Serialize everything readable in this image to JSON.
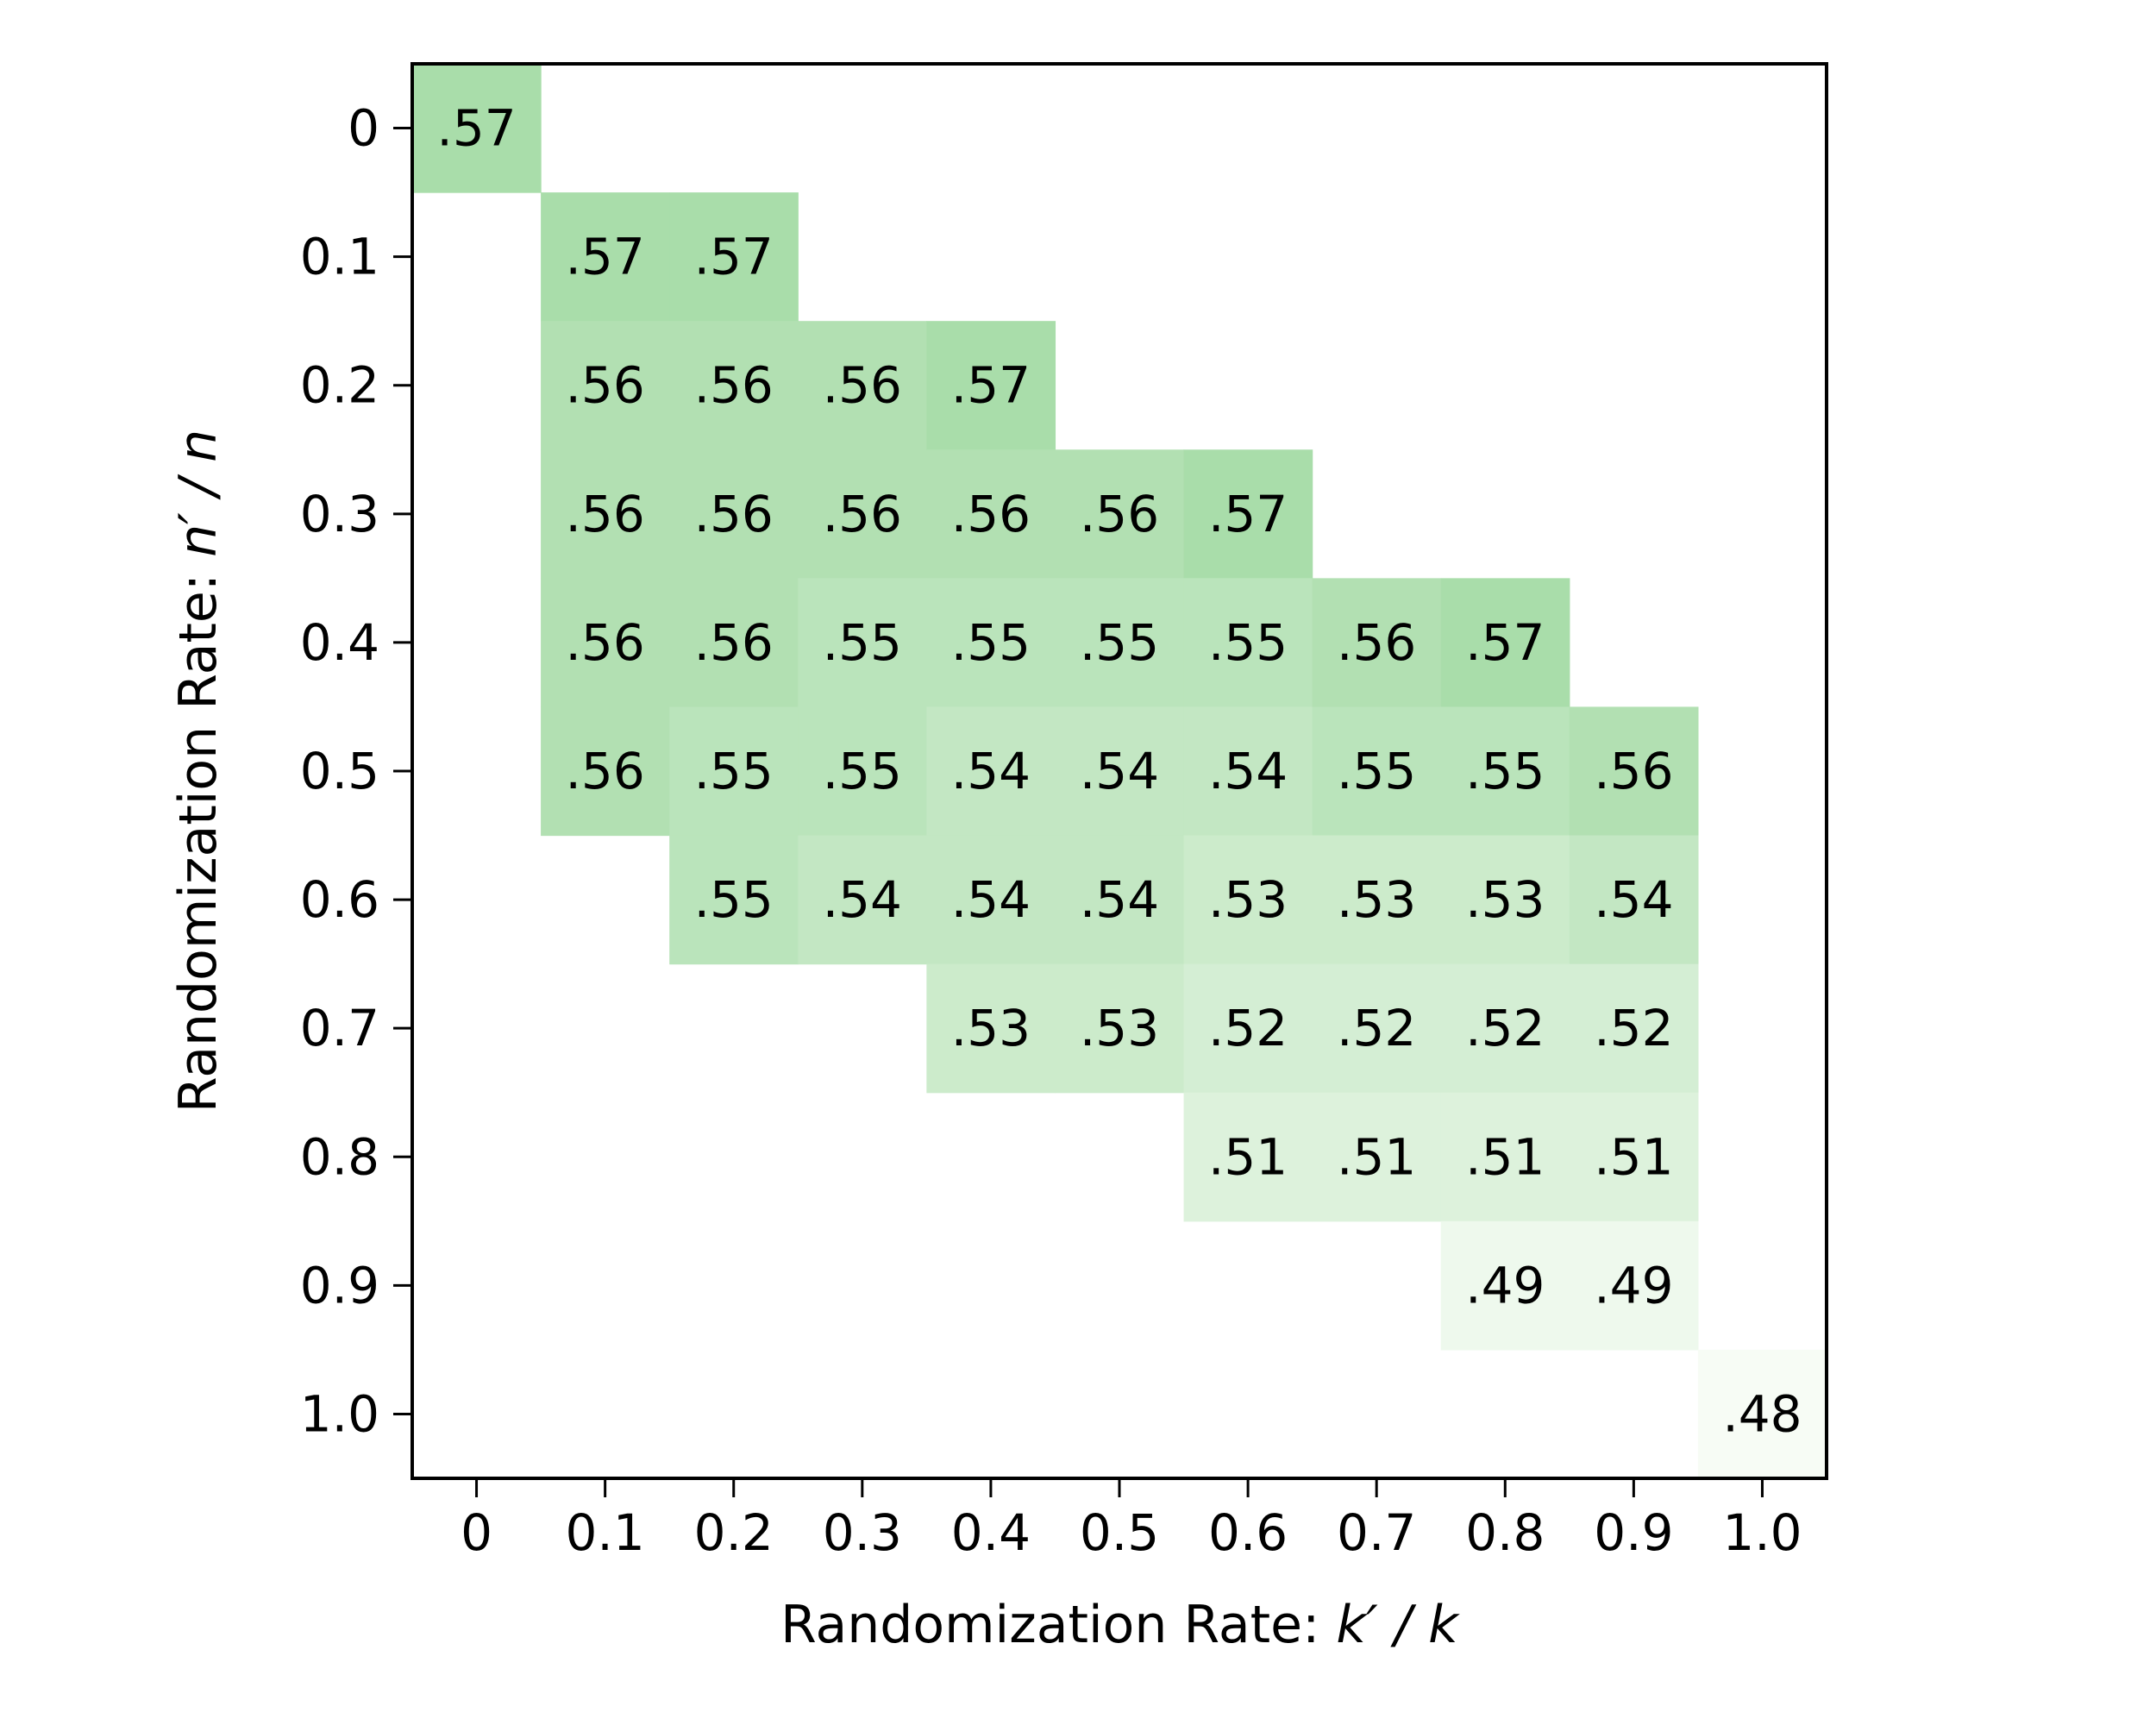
{
  "chart_data": {
    "type": "heatmap",
    "title": "",
    "xlabel": {
      "prefix": "Randomization Rate: ",
      "math": "k′ / k"
    },
    "ylabel": {
      "prefix": "Randomization Rate: ",
      "math": "n′ / n"
    },
    "x_ticks": [
      "0",
      "0.1",
      "0.2",
      "0.3",
      "0.4",
      "0.5",
      "0.6",
      "0.7",
      "0.8",
      "0.9",
      "1.0"
    ],
    "y_ticks": [
      "0",
      "0.1",
      "0.2",
      "0.3",
      "0.4",
      "0.5",
      "0.6",
      "0.7",
      "0.8",
      "0.9",
      "1.0"
    ],
    "color_range": [
      0.48,
      0.57
    ],
    "colors": {
      "low": "#f7fcf5",
      "high": "#a9ddaa"
    },
    "grid": false,
    "cells": [
      {
        "x": "0",
        "y": "0",
        "value": 0.57,
        "label": ".57"
      },
      {
        "x": "0.1",
        "y": "0.1",
        "value": 0.57,
        "label": ".57"
      },
      {
        "x": "0.2",
        "y": "0.1",
        "value": 0.57,
        "label": ".57"
      },
      {
        "x": "0.1",
        "y": "0.2",
        "value": 0.56,
        "label": ".56"
      },
      {
        "x": "0.2",
        "y": "0.2",
        "value": 0.56,
        "label": ".56"
      },
      {
        "x": "0.3",
        "y": "0.2",
        "value": 0.56,
        "label": ".56"
      },
      {
        "x": "0.4",
        "y": "0.2",
        "value": 0.57,
        "label": ".57"
      },
      {
        "x": "0.1",
        "y": "0.3",
        "value": 0.56,
        "label": ".56"
      },
      {
        "x": "0.2",
        "y": "0.3",
        "value": 0.56,
        "label": ".56"
      },
      {
        "x": "0.3",
        "y": "0.3",
        "value": 0.56,
        "label": ".56"
      },
      {
        "x": "0.4",
        "y": "0.3",
        "value": 0.56,
        "label": ".56"
      },
      {
        "x": "0.5",
        "y": "0.3",
        "value": 0.56,
        "label": ".56"
      },
      {
        "x": "0.6",
        "y": "0.3",
        "value": 0.57,
        "label": ".57"
      },
      {
        "x": "0.1",
        "y": "0.4",
        "value": 0.56,
        "label": ".56"
      },
      {
        "x": "0.2",
        "y": "0.4",
        "value": 0.56,
        "label": ".56"
      },
      {
        "x": "0.3",
        "y": "0.4",
        "value": 0.55,
        "label": ".55"
      },
      {
        "x": "0.4",
        "y": "0.4",
        "value": 0.55,
        "label": ".55"
      },
      {
        "x": "0.5",
        "y": "0.4",
        "value": 0.55,
        "label": ".55"
      },
      {
        "x": "0.6",
        "y": "0.4",
        "value": 0.55,
        "label": ".55"
      },
      {
        "x": "0.7",
        "y": "0.4",
        "value": 0.56,
        "label": ".56"
      },
      {
        "x": "0.8",
        "y": "0.4",
        "value": 0.57,
        "label": ".57"
      },
      {
        "x": "0.1",
        "y": "0.5",
        "value": 0.56,
        "label": ".56"
      },
      {
        "x": "0.2",
        "y": "0.5",
        "value": 0.55,
        "label": ".55"
      },
      {
        "x": "0.3",
        "y": "0.5",
        "value": 0.55,
        "label": ".55"
      },
      {
        "x": "0.4",
        "y": "0.5",
        "value": 0.54,
        "label": ".54"
      },
      {
        "x": "0.5",
        "y": "0.5",
        "value": 0.54,
        "label": ".54"
      },
      {
        "x": "0.6",
        "y": "0.5",
        "value": 0.54,
        "label": ".54"
      },
      {
        "x": "0.7",
        "y": "0.5",
        "value": 0.55,
        "label": ".55"
      },
      {
        "x": "0.8",
        "y": "0.5",
        "value": 0.55,
        "label": ".55"
      },
      {
        "x": "0.9",
        "y": "0.5",
        "value": 0.56,
        "label": ".56"
      },
      {
        "x": "0.2",
        "y": "0.6",
        "value": 0.55,
        "label": ".55"
      },
      {
        "x": "0.3",
        "y": "0.6",
        "value": 0.54,
        "label": ".54"
      },
      {
        "x": "0.4",
        "y": "0.6",
        "value": 0.54,
        "label": ".54"
      },
      {
        "x": "0.5",
        "y": "0.6",
        "value": 0.54,
        "label": ".54"
      },
      {
        "x": "0.6",
        "y": "0.6",
        "value": 0.53,
        "label": ".53"
      },
      {
        "x": "0.7",
        "y": "0.6",
        "value": 0.53,
        "label": ".53"
      },
      {
        "x": "0.8",
        "y": "0.6",
        "value": 0.53,
        "label": ".53"
      },
      {
        "x": "0.9",
        "y": "0.6",
        "value": 0.54,
        "label": ".54"
      },
      {
        "x": "0.4",
        "y": "0.7",
        "value": 0.53,
        "label": ".53"
      },
      {
        "x": "0.5",
        "y": "0.7",
        "value": 0.53,
        "label": ".53"
      },
      {
        "x": "0.6",
        "y": "0.7",
        "value": 0.52,
        "label": ".52"
      },
      {
        "x": "0.7",
        "y": "0.7",
        "value": 0.52,
        "label": ".52"
      },
      {
        "x": "0.8",
        "y": "0.7",
        "value": 0.52,
        "label": ".52"
      },
      {
        "x": "0.9",
        "y": "0.7",
        "value": 0.52,
        "label": ".52"
      },
      {
        "x": "0.6",
        "y": "0.8",
        "value": 0.51,
        "label": ".51"
      },
      {
        "x": "0.7",
        "y": "0.8",
        "value": 0.51,
        "label": ".51"
      },
      {
        "x": "0.8",
        "y": "0.8",
        "value": 0.51,
        "label": ".51"
      },
      {
        "x": "0.9",
        "y": "0.8",
        "value": 0.51,
        "label": ".51"
      },
      {
        "x": "0.8",
        "y": "0.9",
        "value": 0.49,
        "label": ".49"
      },
      {
        "x": "0.9",
        "y": "0.9",
        "value": 0.49,
        "label": ".49"
      },
      {
        "x": "1.0",
        "y": "1.0",
        "value": 0.48,
        "label": ".48"
      }
    ]
  }
}
